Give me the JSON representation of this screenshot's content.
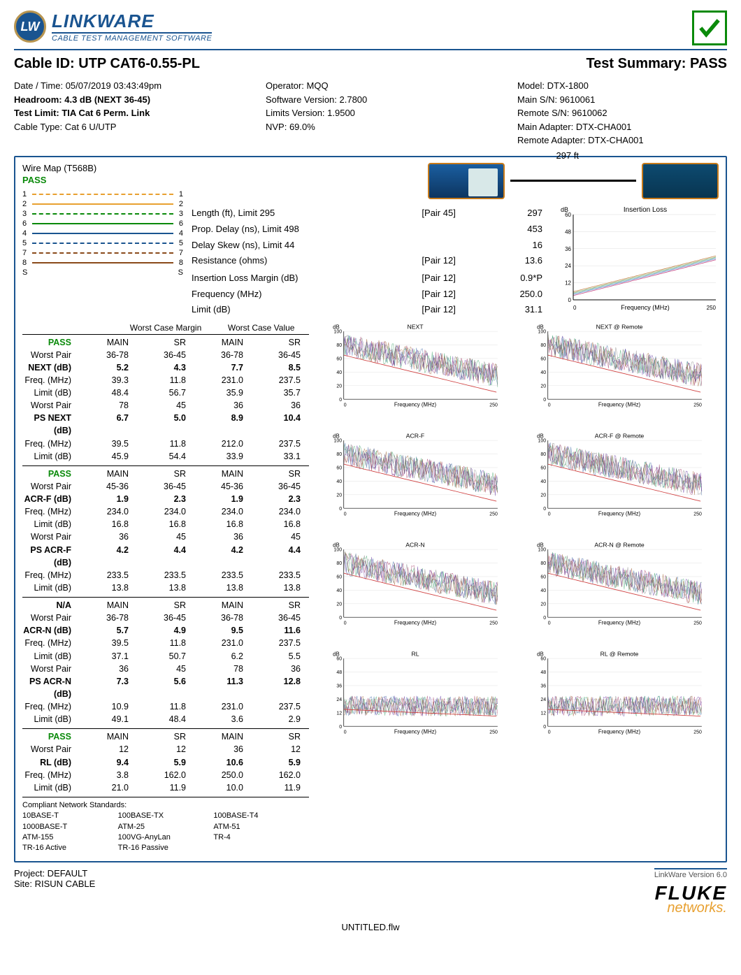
{
  "brand": {
    "badge": "LW",
    "name": "LINKWARE",
    "sub": "CABLE TEST MANAGEMENT SOFTWARE"
  },
  "title": {
    "cable_id_label": "Cable ID:",
    "cable_id": "UTP CAT6-0.55-PL",
    "summary_label": "Test Summary:",
    "summary": "PASS"
  },
  "meta": {
    "col1": [
      "Date / Time: 05/07/2019 03:43:49pm",
      "Headroom: 4.3 dB (NEXT 36-45)",
      "Test Limit: TIA Cat 6 Perm. Link",
      "Cable Type: Cat 6 U/UTP"
    ],
    "col1_bold": [
      false,
      true,
      true,
      false
    ],
    "col2": [
      "Operator: MQQ",
      "Software Version: 2.7800",
      "Limits Version: 1.9500",
      "NVP: 69.0%"
    ],
    "col3": [
      "Model: DTX-1800",
      "Main S/N: 9610061",
      "Remote S/N: 9610062",
      "Main Adapter: DTX-CHA001",
      "Remote Adapter: DTX-CHA001"
    ]
  },
  "wiremap": {
    "title": "Wire Map (T568B)",
    "status": "PASS",
    "pairs": [
      {
        "l": "1",
        "r": "1",
        "color": "#e8a030",
        "style": "dashed"
      },
      {
        "l": "2",
        "r": "2",
        "color": "#e8a030",
        "style": "solid"
      },
      {
        "l": "3",
        "r": "3",
        "color": "#0a8a0a",
        "style": "dashed"
      },
      {
        "l": "6",
        "r": "6",
        "color": "#0a8a0a",
        "style": "solid"
      },
      {
        "l": "4",
        "r": "4",
        "color": "#1a5490",
        "style": "solid"
      },
      {
        "l": "5",
        "r": "5",
        "color": "#1a5490",
        "style": "dashed"
      },
      {
        "l": "7",
        "r": "7",
        "color": "#8a4a1a",
        "style": "dashed"
      },
      {
        "l": "8",
        "r": "8",
        "color": "#8a4a1a",
        "style": "solid"
      },
      {
        "l": "S",
        "r": "S",
        "color": "transparent",
        "style": "solid"
      }
    ]
  },
  "cable_length": "297 ft",
  "params": [
    {
      "label": "Length (ft), Limit 295",
      "pair": "[Pair 45]",
      "val": "297"
    },
    {
      "label": "Prop. Delay (ns), Limit 498",
      "pair": "",
      "val": "453"
    },
    {
      "label": "Delay Skew (ns), Limit 44",
      "pair": "",
      "val": "16"
    },
    {
      "label": "Resistance (ohms)",
      "pair": "[Pair 12]",
      "val": "13.6"
    },
    {
      "label": "",
      "pair": "",
      "val": ""
    },
    {
      "label": "Insertion Loss Margin (dB)",
      "pair": "[Pair 12]",
      "val": "0.9*P"
    },
    {
      "label": "Frequency (MHz)",
      "pair": "[Pair 12]",
      "val": "250.0"
    },
    {
      "label": "Limit (dB)",
      "pair": "[Pair 12]",
      "val": "31.1"
    }
  ],
  "il_chart": {
    "title": "Insertion Loss",
    "ylabel": "dB",
    "yticks": [
      "60",
      "48",
      "36",
      "24",
      "12",
      "0"
    ],
    "xlabel": "Frequency (MHz)",
    "xticks": [
      "0",
      "250"
    ],
    "ylim": [
      0,
      60
    ],
    "xlim": [
      0,
      250
    ],
    "line_colors": [
      "#c04080",
      "#4080c0",
      "#60a060",
      "#c08040"
    ],
    "bg": "#ffffff",
    "grid": "#cccccc"
  },
  "table_headers": {
    "h1": "Worst Case Margin",
    "h2": "Worst Case Value",
    "cols": [
      "MAIN",
      "SR",
      "MAIN",
      "SR"
    ]
  },
  "blocks": [
    {
      "status": "PASS",
      "rows": [
        [
          "Worst Pair",
          "36-78",
          "36-45",
          "36-78",
          "36-45"
        ],
        [
          "NEXT (dB)",
          "5.2",
          "4.3",
          "7.7",
          "8.5"
        ],
        [
          "Freq. (MHz)",
          "39.3",
          "11.8",
          "231.0",
          "237.5"
        ],
        [
          "Limit (dB)",
          "48.4",
          "56.7",
          "35.9",
          "35.7"
        ],
        [
          "Worst Pair",
          "78",
          "45",
          "36",
          "36"
        ],
        [
          "PS NEXT (dB)",
          "6.7",
          "5.0",
          "8.9",
          "10.4"
        ],
        [
          "Freq. (MHz)",
          "39.5",
          "11.8",
          "212.0",
          "237.5"
        ],
        [
          "Limit (dB)",
          "45.9",
          "54.4",
          "33.9",
          "33.1"
        ]
      ],
      "bold_rows": [
        1,
        5
      ]
    },
    {
      "status": "PASS",
      "rows": [
        [
          "Worst Pair",
          "45-36",
          "36-45",
          "45-36",
          "36-45"
        ],
        [
          "ACR-F (dB)",
          "1.9",
          "2.3",
          "1.9",
          "2.3"
        ],
        [
          "Freq. (MHz)",
          "234.0",
          "234.0",
          "234.0",
          "234.0"
        ],
        [
          "Limit (dB)",
          "16.8",
          "16.8",
          "16.8",
          "16.8"
        ],
        [
          "Worst Pair",
          "36",
          "45",
          "36",
          "45"
        ],
        [
          "PS ACR-F (dB)",
          "4.2",
          "4.4",
          "4.2",
          "4.4"
        ],
        [
          "Freq. (MHz)",
          "233.5",
          "233.5",
          "233.5",
          "233.5"
        ],
        [
          "Limit (dB)",
          "13.8",
          "13.8",
          "13.8",
          "13.8"
        ]
      ],
      "bold_rows": [
        1,
        5
      ]
    },
    {
      "status": "N/A",
      "rows": [
        [
          "Worst Pair",
          "36-78",
          "36-45",
          "36-78",
          "36-45"
        ],
        [
          "ACR-N (dB)",
          "5.7",
          "4.9",
          "9.5",
          "11.6"
        ],
        [
          "Freq. (MHz)",
          "39.5",
          "11.8",
          "231.0",
          "237.5"
        ],
        [
          "Limit (dB)",
          "37.1",
          "50.7",
          "6.2",
          "5.5"
        ],
        [
          "Worst Pair",
          "36",
          "45",
          "78",
          "36"
        ],
        [
          "PS ACR-N (dB)",
          "7.3",
          "5.6",
          "11.3",
          "12.8"
        ],
        [
          "Freq. (MHz)",
          "10.9",
          "11.8",
          "231.0",
          "237.5"
        ],
        [
          "Limit (dB)",
          "49.1",
          "48.4",
          "3.6",
          "2.9"
        ]
      ],
      "bold_rows": [
        1,
        5
      ]
    },
    {
      "status": "PASS",
      "rows": [
        [
          "Worst Pair",
          "12",
          "12",
          "36",
          "12"
        ],
        [
          "RL (dB)",
          "9.4",
          "5.9",
          "10.6",
          "5.9"
        ],
        [
          "Freq. (MHz)",
          "3.8",
          "162.0",
          "250.0",
          "162.0"
        ],
        [
          "Limit (dB)",
          "21.0",
          "11.9",
          "10.0",
          "11.9"
        ]
      ],
      "bold_rows": [
        1
      ]
    }
  ],
  "charts": [
    {
      "title": "NEXT",
      "ylim": [
        0,
        100
      ],
      "yticks": [
        "100",
        "80",
        "60",
        "40",
        "20",
        "0"
      ]
    },
    {
      "title": "NEXT @ Remote",
      "ylim": [
        0,
        100
      ],
      "yticks": [
        "100",
        "80",
        "60",
        "40",
        "20",
        "0"
      ]
    },
    {
      "title": "ACR-F",
      "ylim": [
        0,
        100
      ],
      "yticks": [
        "100",
        "80",
        "60",
        "40",
        "20",
        "0"
      ]
    },
    {
      "title": "ACR-F @ Remote",
      "ylim": [
        0,
        100
      ],
      "yticks": [
        "100",
        "80",
        "60",
        "40",
        "20",
        "0"
      ]
    },
    {
      "title": "ACR-N",
      "ylim": [
        0,
        100
      ],
      "yticks": [
        "100",
        "80",
        "60",
        "40",
        "20",
        "0"
      ]
    },
    {
      "title": "ACR-N @ Remote",
      "ylim": [
        0,
        100
      ],
      "yticks": [
        "100",
        "80",
        "60",
        "40",
        "20",
        "0"
      ]
    },
    {
      "title": "RL",
      "ylim": [
        0,
        60
      ],
      "yticks": [
        "60",
        "48",
        "36",
        "24",
        "12",
        "0"
      ]
    },
    {
      "title": "RL @ Remote",
      "ylim": [
        0,
        60
      ],
      "yticks": [
        "60",
        "48",
        "36",
        "24",
        "12",
        "0"
      ]
    }
  ],
  "chart_common": {
    "xlabel": "Frequency (MHz)",
    "xticks": [
      "0",
      "250"
    ],
    "ylabel": "dB",
    "trace_colors": [
      "#3060a0",
      "#a03060",
      "#30a060",
      "#a06030",
      "#6030a0",
      "#808080"
    ],
    "limit_color": "#d04040",
    "bg": "#ffffff",
    "grid": "#dddddd"
  },
  "compliant": {
    "title": "Compliant Network Standards:",
    "rows": [
      [
        "10BASE-T",
        "100BASE-TX",
        "100BASE-T4"
      ],
      [
        "1000BASE-T",
        "ATM-25",
        "ATM-51"
      ],
      [
        "ATM-155",
        "100VG-AnyLan",
        "TR-4"
      ],
      [
        "TR-16 Active",
        "TR-16 Passive",
        ""
      ]
    ]
  },
  "footer": {
    "project": "Project: DEFAULT",
    "site": "Site: RISUN CABLE",
    "version": "LinkWare Version  6.0",
    "fluke": "FLUKE",
    "net": "networks.",
    "filename": "UNTITLED.flw"
  }
}
